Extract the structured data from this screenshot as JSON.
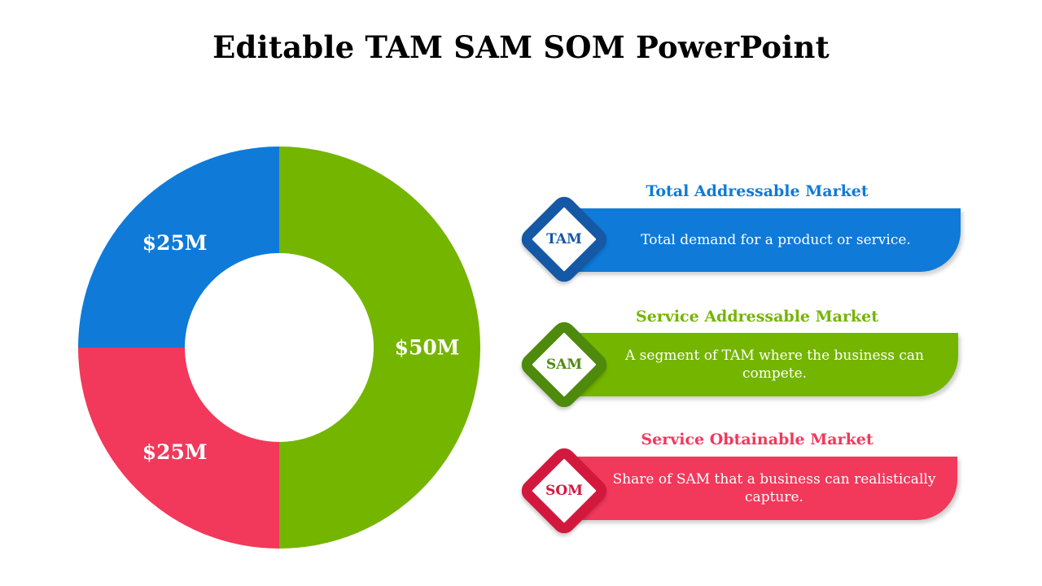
{
  "title": "Editable TAM SAM SOM PowerPoint",
  "colors": {
    "tam": "#0f7ad8",
    "sam": "#74b500",
    "som": "#f2385b",
    "tam_dark": "#1558a6",
    "sam_dark": "#4e8a0c",
    "som_dark": "#d3183e"
  },
  "chart_data": {
    "type": "pie",
    "donut": true,
    "slices": [
      {
        "key": "sam",
        "value": 50,
        "label": "$50M",
        "color": "#74b500"
      },
      {
        "key": "som",
        "value": 25,
        "label": "$25M",
        "color": "#f2385b"
      },
      {
        "key": "tam",
        "value": 25,
        "label": "$25M",
        "color": "#0f7ad8"
      }
    ]
  },
  "markets": [
    {
      "abbr": "TAM",
      "heading": "Total Addressable Market",
      "description": "Total demand for a product or service.",
      "color": "#0f7ad8",
      "dark": "#1558a6"
    },
    {
      "abbr": "SAM",
      "heading": "Service Addressable Market",
      "description": "A segment of TAM where the business can compete.",
      "color": "#74b500",
      "dark": "#4e8a0c"
    },
    {
      "abbr": "SOM",
      "heading": "Service Obtainable Market",
      "description": "Share of SAM that a business can realistically capture.",
      "color": "#f2385b",
      "dark": "#d3183e"
    }
  ]
}
